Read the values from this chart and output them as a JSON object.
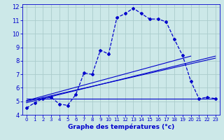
{
  "xlabel": "Graphe des températures (°c)",
  "background_color": "#cce8e8",
  "grid_color": "#aacccc",
  "line_color": "#0000cc",
  "xlim": [
    -0.5,
    23.5
  ],
  "ylim": [
    4,
    12.2
  ],
  "xticks": [
    0,
    1,
    2,
    3,
    4,
    5,
    6,
    7,
    8,
    9,
    10,
    11,
    12,
    13,
    14,
    15,
    16,
    17,
    18,
    19,
    20,
    21,
    22,
    23
  ],
  "yticks": [
    4,
    5,
    6,
    7,
    8,
    9,
    10,
    11,
    12
  ],
  "main_x": [
    0,
    1,
    2,
    3,
    4,
    5,
    6,
    7,
    8,
    9,
    10,
    11,
    12,
    13,
    14,
    15,
    16,
    17,
    18,
    19,
    20,
    21,
    22,
    23
  ],
  "main_y": [
    4.5,
    4.9,
    5.2,
    5.3,
    4.8,
    4.7,
    5.5,
    7.1,
    7.0,
    8.8,
    8.5,
    11.2,
    11.5,
    11.9,
    11.5,
    11.1,
    11.1,
    10.9,
    9.6,
    8.4,
    6.5,
    5.2,
    5.3,
    5.2
  ],
  "horiz_line_x": [
    0,
    23
  ],
  "horiz_line_y": [
    5.2,
    5.2
  ],
  "diag_line1_x": [
    0,
    23
  ],
  "diag_line1_y": [
    4.9,
    8.35
  ],
  "diag_line2_x": [
    0,
    20
  ],
  "diag_line2_y": [
    5.05,
    8.35
  ],
  "diag_line3_x": [
    0,
    23
  ],
  "diag_line3_y": [
    5.0,
    8.2
  ]
}
